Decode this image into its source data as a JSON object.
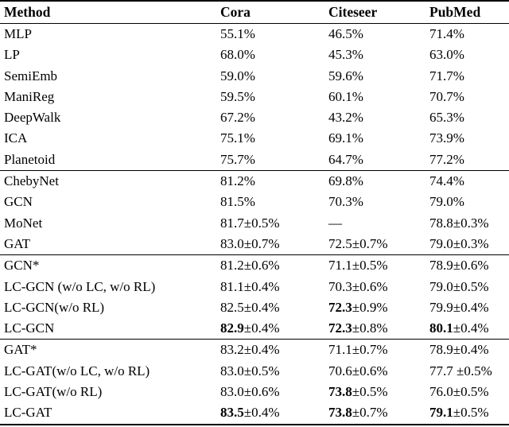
{
  "colors": {
    "text": "#000000",
    "background": "#ffffff",
    "rule": "#000000"
  },
  "table": {
    "columns": [
      "Method",
      "Cora",
      "Citeseer",
      "PubMed"
    ],
    "groups": [
      {
        "name": "classic-baselines",
        "rows": [
          {
            "method": "MLP",
            "cells": [
              {
                "bold": "",
                "rest": "55.1%"
              },
              {
                "bold": "",
                "rest": "46.5%"
              },
              {
                "bold": "",
                "rest": "71.4%"
              }
            ]
          },
          {
            "method": "LP",
            "cells": [
              {
                "bold": "",
                "rest": "68.0%"
              },
              {
                "bold": "",
                "rest": "45.3%"
              },
              {
                "bold": "",
                "rest": "63.0%"
              }
            ]
          },
          {
            "method": "SemiEmb",
            "cells": [
              {
                "bold": "",
                "rest": "59.0%"
              },
              {
                "bold": "",
                "rest": "59.6%"
              },
              {
                "bold": "",
                "rest": "71.7%"
              }
            ]
          },
          {
            "method": "ManiReg",
            "cells": [
              {
                "bold": "",
                "rest": "59.5%"
              },
              {
                "bold": "",
                "rest": "60.1%"
              },
              {
                "bold": "",
                "rest": "70.7%"
              }
            ]
          },
          {
            "method": "DeepWalk",
            "cells": [
              {
                "bold": "",
                "rest": "67.2%"
              },
              {
                "bold": "",
                "rest": "43.2%"
              },
              {
                "bold": "",
                "rest": "65.3%"
              }
            ]
          },
          {
            "method": "ICA",
            "cells": [
              {
                "bold": "",
                "rest": "75.1%"
              },
              {
                "bold": "",
                "rest": "69.1%"
              },
              {
                "bold": "",
                "rest": "73.9%"
              }
            ]
          },
          {
            "method": "Planetoid",
            "cells": [
              {
                "bold": "",
                "rest": "75.7%"
              },
              {
                "bold": "",
                "rest": "64.7%"
              },
              {
                "bold": "",
                "rest": "77.2%"
              }
            ]
          }
        ]
      },
      {
        "name": "gnn-baselines",
        "rows": [
          {
            "method": "ChebyNet",
            "cells": [
              {
                "bold": "",
                "rest": "81.2%"
              },
              {
                "bold": "",
                "rest": "69.8%"
              },
              {
                "bold": "",
                "rest": "74.4%"
              }
            ]
          },
          {
            "method": "GCN",
            "cells": [
              {
                "bold": "",
                "rest": "81.5%"
              },
              {
                "bold": "",
                "rest": "70.3%"
              },
              {
                "bold": "",
                "rest": "79.0%"
              }
            ]
          },
          {
            "method": "MoNet",
            "cells": [
              {
                "bold": "",
                "rest": "81.7±0.5%"
              },
              {
                "bold": "",
                "rest": "—"
              },
              {
                "bold": "",
                "rest": "78.8±0.3%"
              }
            ]
          },
          {
            "method": "GAT",
            "cells": [
              {
                "bold": "",
                "rest": "83.0±0.7%"
              },
              {
                "bold": "",
                "rest": "72.5±0.7%"
              },
              {
                "bold": "",
                "rest": "79.0±0.3%"
              }
            ]
          }
        ]
      },
      {
        "name": "lc-gcn-ablation",
        "rows": [
          {
            "method": "GCN*",
            "cells": [
              {
                "bold": "",
                "rest": "81.2±0.6%"
              },
              {
                "bold": "",
                "rest": "71.1±0.5%"
              },
              {
                "bold": "",
                "rest": "78.9±0.6%"
              }
            ]
          },
          {
            "method": "LC-GCN (w/o LC, w/o RL)",
            "cells": [
              {
                "bold": "",
                "rest": "81.1±0.4%"
              },
              {
                "bold": "",
                "rest": "70.3±0.6%"
              },
              {
                "bold": "",
                "rest": "79.0±0.5%"
              }
            ]
          },
          {
            "method": "LC-GCN(w/o RL)",
            "cells": [
              {
                "bold": "",
                "rest": "82.5±0.4%"
              },
              {
                "bold": "72.3",
                "rest": "±0.9%"
              },
              {
                "bold": "",
                "rest": "79.9±0.4%"
              }
            ]
          },
          {
            "method": "LC-GCN",
            "cells": [
              {
                "bold": "82.9",
                "rest": "±0.4%"
              },
              {
                "bold": "72.3",
                "rest": "±0.8%"
              },
              {
                "bold": "80.1",
                "rest": "±0.4%"
              }
            ]
          }
        ]
      },
      {
        "name": "lc-gat-ablation",
        "rows": [
          {
            "method": "GAT*",
            "cells": [
              {
                "bold": "",
                "rest": "83.2±0.4%"
              },
              {
                "bold": "",
                "rest": "71.1±0.7%"
              },
              {
                "bold": "",
                "rest": "78.9±0.4%"
              }
            ]
          },
          {
            "method": "LC-GAT(w/o LC, w/o RL)",
            "cells": [
              {
                "bold": "",
                "rest": "83.0±0.5%"
              },
              {
                "bold": "",
                "rest": "70.6±0.6%"
              },
              {
                "bold": "",
                "rest": "77.7 ±0.5%"
              }
            ]
          },
          {
            "method": "LC-GAT(w/o RL)",
            "cells": [
              {
                "bold": "",
                "rest": "83.0±0.6%"
              },
              {
                "bold": "73.8",
                "rest": "±0.5%"
              },
              {
                "bold": "",
                "rest": "76.0±0.5%"
              }
            ]
          },
          {
            "method": "LC-GAT",
            "cells": [
              {
                "bold": "83.5",
                "rest": "±0.4%"
              },
              {
                "bold": "73.8",
                "rest": "±0.7%"
              },
              {
                "bold": "79.1",
                "rest": "±0.5%"
              }
            ]
          }
        ]
      }
    ]
  }
}
